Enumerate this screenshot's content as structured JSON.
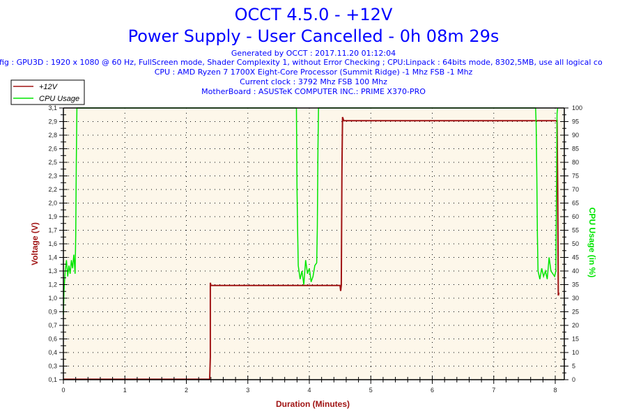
{
  "header": {
    "title": "OCCT 4.5.0 - +12V",
    "subtitle": "Power Supply - User Cancelled - 0h 08m 29s",
    "generated": "Generated by OCCT : 2017.11.20 01:12:04",
    "config": "fig : GPU3D : 1920 x 1080 @ 60 Hz, FullScreen mode, Shader Complexity 1, without Error Checking ; CPU:Linpack : 64bits mode, 8302,5MB, use all logical co",
    "cpu": "CPU : AMD Ryzen 7 1700X Eight-Core Processor (Summit Ridge) -1 Mhz FSB -1 Mhz",
    "clock": "Current clock : 3792 Mhz FSB 100 Mhz",
    "motherboard": "MotherBoard : ASUSTeK COMPUTER INC.: PRIME X370-PRO"
  },
  "chart_data": {
    "type": "line",
    "title": "OCCT 4.5.0 - +12V",
    "xlabel": "Duration (Minutes)",
    "ylabel": "Voltage (V)",
    "y2label": "CPU Usage (in %)",
    "xlim": [
      0,
      8.14
    ],
    "ylim": [
      0.1,
      3.1
    ],
    "y2lim": [
      0,
      100
    ],
    "grid": true,
    "legend_position": "top-left",
    "background": "#fdf7ea",
    "x_ticks": [
      "0",
      "1",
      "2",
      "3",
      "4",
      "5",
      "6",
      "7",
      "8"
    ],
    "y_ticks": [
      "0,1",
      "0,3",
      "0,4",
      "0,6",
      "0,7",
      "0,9",
      "1,0",
      "1,2",
      "1,3",
      "1,4",
      "1,6",
      "1,7",
      "1,9",
      "2,0",
      "2,2",
      "2,3",
      "2,5",
      "2,6",
      "2,8",
      "2,9",
      "3,1"
    ],
    "y2_ticks": [
      "0",
      "5",
      "10",
      "15",
      "20",
      "25",
      "30",
      "35",
      "40",
      "45",
      "50",
      "55",
      "60",
      "65",
      "70",
      "75",
      "80",
      "85",
      "90",
      "95",
      "100"
    ],
    "series": [
      {
        "name": "+12V",
        "axis": "left",
        "color": "#a01414",
        "x": [
          0,
          2.3,
          2.38,
          2.39,
          2.39,
          2.4,
          4.5,
          4.51,
          4.52,
          4.53,
          4.54,
          4.56,
          8.03,
          8.04,
          8.05,
          8.06
        ],
        "y": [
          0.105,
          0.105,
          0.105,
          0.35,
          1.17,
          1.14,
          1.14,
          1.08,
          1.14,
          2.4,
          3.0,
          2.96,
          2.96,
          2.2,
          1.03,
          1.06
        ]
      },
      {
        "name": "CPU Usage",
        "axis": "right",
        "color": "#00e600",
        "x": [
          0,
          0.01,
          0.03,
          0.05,
          0.07,
          0.09,
          0.11,
          0.13,
          0.15,
          0.17,
          0.19,
          0.2,
          0.21,
          0.22,
          3.79,
          3.8,
          3.81,
          3.82,
          3.85,
          3.88,
          3.91,
          3.94,
          3.97,
          4.0,
          4.03,
          4.06,
          4.09,
          4.12,
          4.13,
          4.14,
          4.15,
          7.68,
          7.69,
          7.7,
          7.71,
          7.72,
          7.75,
          7.78,
          7.81,
          7.84,
          7.87,
          7.9,
          7.93,
          7.96,
          7.99,
          8.01,
          8.02,
          8.03,
          8.04
        ],
        "y": [
          24,
          33,
          40,
          44,
          38,
          42,
          39,
          44,
          41,
          46,
          39,
          53,
          79,
          100,
          100,
          71,
          55,
          42,
          37,
          40,
          35,
          44,
          39,
          41,
          36,
          38,
          42,
          43,
          56,
          85,
          100,
          100,
          94,
          76,
          53,
          40,
          37,
          41,
          38,
          40,
          37,
          45,
          40,
          39,
          38,
          40,
          70,
          98,
          100
        ]
      }
    ]
  }
}
